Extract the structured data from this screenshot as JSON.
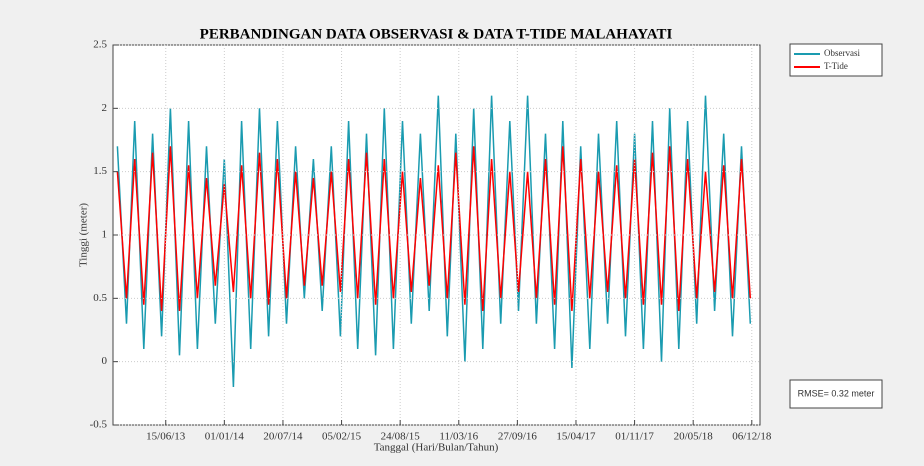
{
  "chart_data": {
    "type": "line",
    "title": "PERBANDINGAN DATA OBSERVASI & DATA T-TIDE MALAHAYATI",
    "xlabel": "Tanggal (Hari/Bulan/Tahun)",
    "ylabel": "Tinggi (meter)",
    "annotation": "RMSE= 0.32 meter",
    "grid": true,
    "legend": "outside-right",
    "xlim": [
      "17/12/12",
      "03/01/19"
    ],
    "xticks": [
      "15/06/13",
      "01/01/14",
      "20/07/14",
      "05/02/15",
      "24/08/15",
      "11/03/16",
      "27/09/16",
      "15/04/17",
      "01/11/17",
      "20/05/18",
      "06/12/18"
    ],
    "ylim": [
      -0.5,
      2.5
    ],
    "yticks": [
      -0.5,
      0,
      0.5,
      1,
      1.5,
      2,
      2.5
    ],
    "x": [
      "01/01/13",
      "01/02/13",
      "01/03/13",
      "01/04/13",
      "01/05/13",
      "01/06/13",
      "01/07/13",
      "01/08/13",
      "01/09/13",
      "01/10/13",
      "01/11/13",
      "01/12/13",
      "01/01/14",
      "01/02/14",
      "01/03/14",
      "01/04/14",
      "01/05/14",
      "01/06/14",
      "01/07/14",
      "01/08/14",
      "01/09/14",
      "01/10/14",
      "01/11/14",
      "01/12/14",
      "01/01/15",
      "01/02/15",
      "01/03/15",
      "01/04/15",
      "01/05/15",
      "01/06/15",
      "01/07/15",
      "01/08/15",
      "01/09/15",
      "01/10/15",
      "01/11/15",
      "01/12/15",
      "01/01/16",
      "01/02/16",
      "01/03/16",
      "01/04/16",
      "01/05/16",
      "01/06/16",
      "01/07/16",
      "01/08/16",
      "01/09/16",
      "01/10/16",
      "01/11/16",
      "01/12/16",
      "01/01/17",
      "01/02/17",
      "01/03/17",
      "01/04/17",
      "01/05/17",
      "01/06/17",
      "01/07/17",
      "01/08/17",
      "01/09/17",
      "01/10/17",
      "01/11/17",
      "01/12/17",
      "01/01/18",
      "01/02/18",
      "01/03/18",
      "01/04/18",
      "01/05/18",
      "01/06/18",
      "01/07/18",
      "01/08/18",
      "01/09/18",
      "01/10/18",
      "01/11/18",
      "01/12/18"
    ],
    "series": [
      {
        "name": "Observasi",
        "color": "#1a9bb0",
        "values": [
          1.7,
          0.3,
          1.9,
          0.1,
          1.8,
          0.2,
          2.0,
          0.05,
          1.9,
          0.1,
          1.7,
          0.3,
          1.6,
          -0.2,
          1.9,
          0.1,
          2.0,
          0.2,
          1.9,
          0.3,
          1.7,
          0.5,
          1.6,
          0.4,
          1.7,
          0.2,
          1.9,
          0.1,
          1.8,
          0.05,
          2.0,
          0.1,
          1.9,
          0.3,
          1.8,
          0.4,
          2.1,
          0.2,
          1.8,
          0.0,
          2.0,
          0.1,
          2.1,
          0.3,
          1.9,
          0.4,
          2.1,
          0.3,
          1.8,
          0.1,
          1.9,
          -0.05,
          1.7,
          0.1,
          1.8,
          0.3,
          1.9,
          0.2,
          1.8,
          0.1,
          1.9,
          0.0,
          2.0,
          0.1,
          1.9,
          0.3,
          2.1,
          0.4,
          1.8,
          0.2,
          1.7,
          0.3
        ]
      },
      {
        "name": "T-Tide",
        "color": "#ff0000",
        "values": [
          1.5,
          0.5,
          1.6,
          0.45,
          1.65,
          0.4,
          1.7,
          0.4,
          1.55,
          0.5,
          1.45,
          0.6,
          1.4,
          0.55,
          1.55,
          0.5,
          1.65,
          0.45,
          1.6,
          0.5,
          1.5,
          0.6,
          1.45,
          0.6,
          1.5,
          0.55,
          1.6,
          0.5,
          1.65,
          0.45,
          1.6,
          0.5,
          1.5,
          0.55,
          1.45,
          0.6,
          1.55,
          0.5,
          1.65,
          0.45,
          1.7,
          0.4,
          1.6,
          0.5,
          1.5,
          0.55,
          1.5,
          0.5,
          1.6,
          0.45,
          1.7,
          0.4,
          1.6,
          0.5,
          1.5,
          0.55,
          1.55,
          0.5,
          1.6,
          0.45,
          1.65,
          0.45,
          1.7,
          0.4,
          1.6,
          0.5,
          1.5,
          0.55,
          1.55,
          0.5,
          1.6,
          0.5
        ]
      }
    ]
  }
}
